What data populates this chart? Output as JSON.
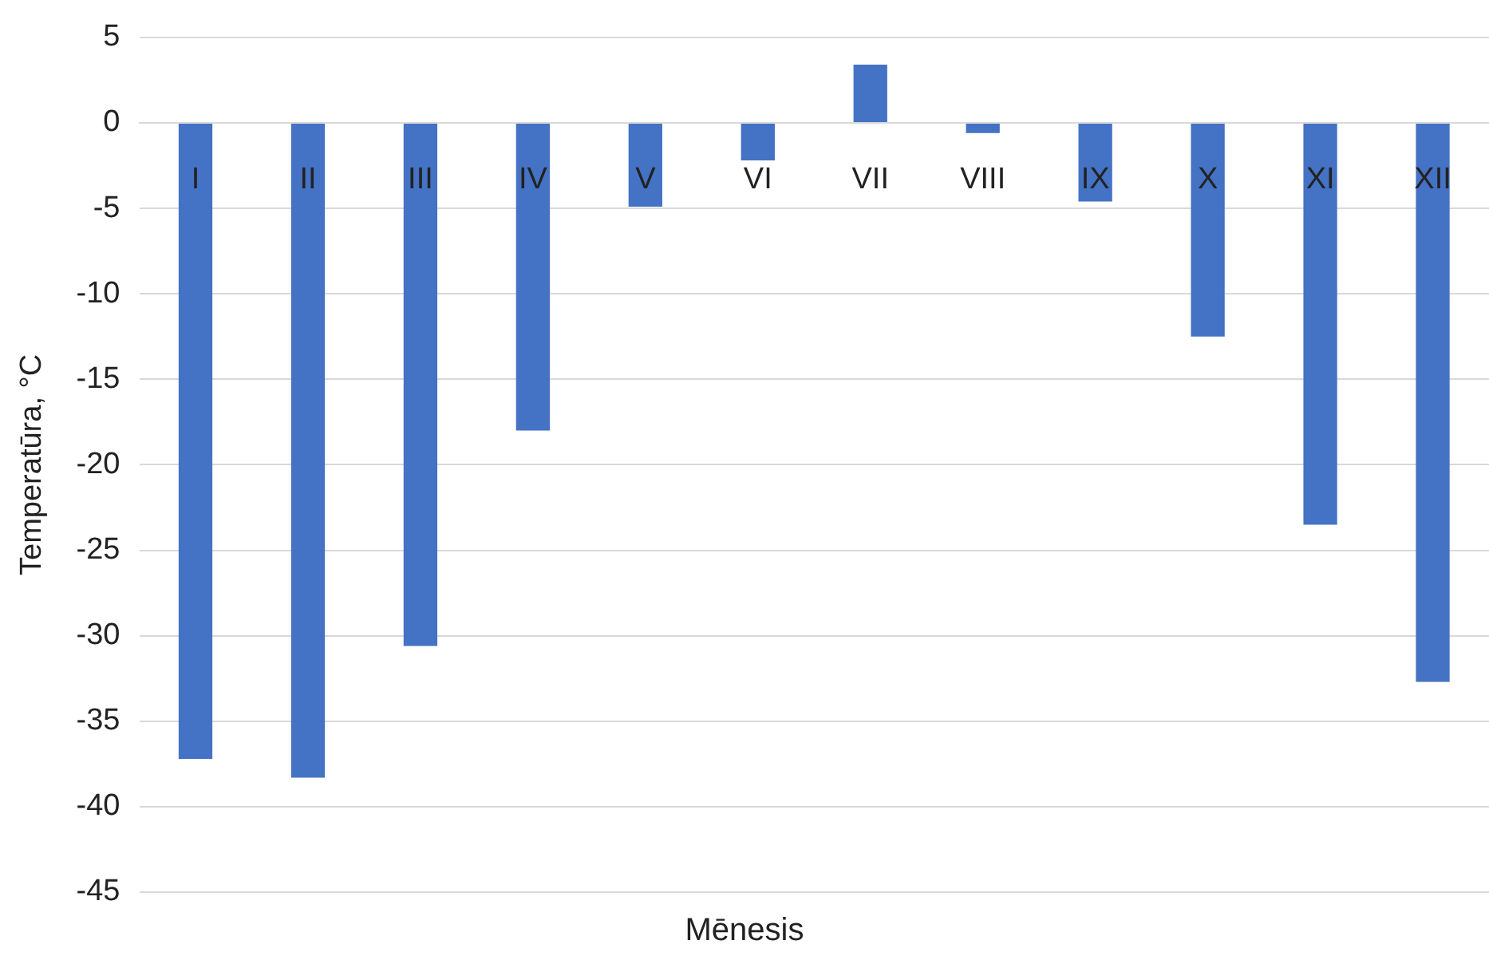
{
  "chart_data": {
    "type": "bar",
    "xlabel": "Mēnesis",
    "ylabel": "Temperatūra, °C",
    "categories": [
      "I",
      "II",
      "III",
      "IV",
      "V",
      "VI",
      "VII",
      "VIII",
      "IX",
      "X",
      "XI",
      "XII"
    ],
    "values": [
      -37.2,
      -38.3,
      -30.6,
      -18.0,
      -4.9,
      -2.2,
      3.4,
      -0.6,
      -4.6,
      -12.5,
      -23.5,
      -32.7
    ],
    "color": "#4472c4",
    "ylim": [
      -45,
      5
    ],
    "yticks": [
      -45,
      -40,
      -35,
      -30,
      -25,
      -20,
      -15,
      -10,
      -5,
      0,
      5
    ],
    "grid": "y",
    "legend": false
  }
}
